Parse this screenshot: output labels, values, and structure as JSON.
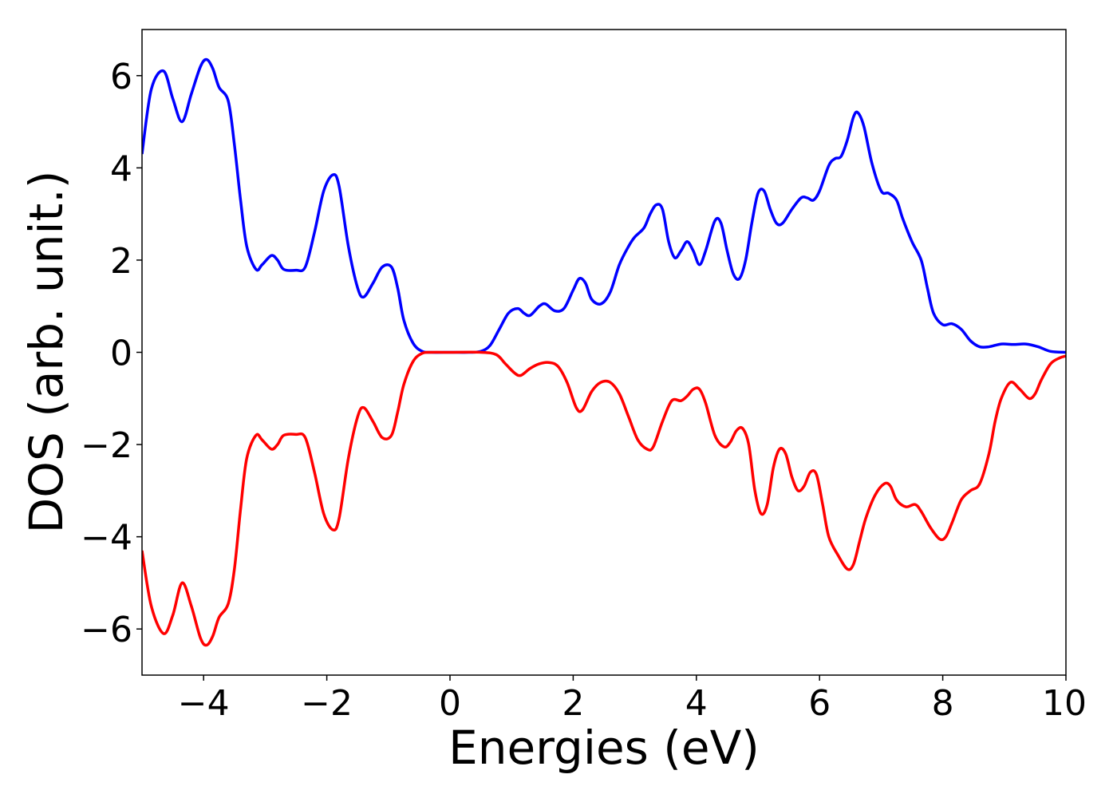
{
  "chart_data": {
    "type": "line",
    "title": "",
    "xlabel": "Energies (eV)",
    "ylabel": "DOS (arb. unit.)",
    "xlim": [
      -5,
      10
    ],
    "ylim": [
      -7,
      7
    ],
    "xticks": [
      -4,
      -2,
      0,
      2,
      4,
      6,
      8,
      10
    ],
    "yticks": [
      -6,
      -4,
      -2,
      0,
      2,
      4,
      6
    ],
    "xtick_labels": [
      "−4",
      "−2",
      "0",
      "2",
      "4",
      "6",
      "8",
      "10"
    ],
    "ytick_labels": [
      "−6",
      "−4",
      "−2",
      "0",
      "2",
      "4",
      "6"
    ],
    "grid": false,
    "legend": "none",
    "series": [
      {
        "color": "#0000ff",
        "points": [
          [
            -5.0,
            4.3
          ],
          [
            -4.85,
            5.7
          ],
          [
            -4.65,
            6.1
          ],
          [
            -4.5,
            5.5
          ],
          [
            -4.35,
            5.0
          ],
          [
            -4.2,
            5.6
          ],
          [
            -4.05,
            6.2
          ],
          [
            -3.95,
            6.35
          ],
          [
            -3.85,
            6.15
          ],
          [
            -3.75,
            5.75
          ],
          [
            -3.6,
            5.45
          ],
          [
            -3.5,
            4.5
          ],
          [
            -3.4,
            3.3
          ],
          [
            -3.3,
            2.3
          ],
          [
            -3.15,
            1.8
          ],
          [
            -3.05,
            1.9
          ],
          [
            -2.9,
            2.1
          ],
          [
            -2.8,
            2.0
          ],
          [
            -2.7,
            1.8
          ],
          [
            -2.5,
            1.78
          ],
          [
            -2.35,
            1.85
          ],
          [
            -2.2,
            2.6
          ],
          [
            -2.05,
            3.5
          ],
          [
            -1.9,
            3.85
          ],
          [
            -1.8,
            3.6
          ],
          [
            -1.65,
            2.3
          ],
          [
            -1.5,
            1.4
          ],
          [
            -1.4,
            1.2
          ],
          [
            -1.25,
            1.5
          ],
          [
            -1.1,
            1.85
          ],
          [
            -0.95,
            1.85
          ],
          [
            -0.85,
            1.4
          ],
          [
            -0.75,
            0.7
          ],
          [
            -0.6,
            0.2
          ],
          [
            -0.45,
            0.02
          ],
          [
            -0.3,
            0.0
          ],
          [
            0.0,
            0.0
          ],
          [
            0.3,
            0.0
          ],
          [
            0.5,
            0.02
          ],
          [
            0.65,
            0.15
          ],
          [
            0.8,
            0.5
          ],
          [
            0.95,
            0.85
          ],
          [
            1.1,
            0.95
          ],
          [
            1.2,
            0.85
          ],
          [
            1.3,
            0.8
          ],
          [
            1.45,
            1.0
          ],
          [
            1.55,
            1.05
          ],
          [
            1.7,
            0.9
          ],
          [
            1.85,
            0.95
          ],
          [
            2.0,
            1.35
          ],
          [
            2.1,
            1.6
          ],
          [
            2.2,
            1.5
          ],
          [
            2.3,
            1.15
          ],
          [
            2.45,
            1.05
          ],
          [
            2.6,
            1.3
          ],
          [
            2.75,
            1.9
          ],
          [
            2.9,
            2.3
          ],
          [
            3.0,
            2.5
          ],
          [
            3.15,
            2.7
          ],
          [
            3.25,
            3.0
          ],
          [
            3.35,
            3.2
          ],
          [
            3.45,
            3.1
          ],
          [
            3.55,
            2.4
          ],
          [
            3.65,
            2.05
          ],
          [
            3.75,
            2.2
          ],
          [
            3.85,
            2.4
          ],
          [
            3.95,
            2.2
          ],
          [
            4.05,
            1.9
          ],
          [
            4.15,
            2.2
          ],
          [
            4.3,
            2.85
          ],
          [
            4.4,
            2.8
          ],
          [
            4.5,
            2.2
          ],
          [
            4.6,
            1.7
          ],
          [
            4.7,
            1.6
          ],
          [
            4.8,
            2.0
          ],
          [
            4.9,
            2.8
          ],
          [
            5.0,
            3.45
          ],
          [
            5.1,
            3.5
          ],
          [
            5.2,
            3.1
          ],
          [
            5.3,
            2.8
          ],
          [
            5.4,
            2.8
          ],
          [
            5.55,
            3.1
          ],
          [
            5.7,
            3.35
          ],
          [
            5.8,
            3.35
          ],
          [
            5.9,
            3.3
          ],
          [
            6.0,
            3.5
          ],
          [
            6.15,
            4.05
          ],
          [
            6.25,
            4.2
          ],
          [
            6.35,
            4.25
          ],
          [
            6.45,
            4.6
          ],
          [
            6.55,
            5.1
          ],
          [
            6.62,
            5.2
          ],
          [
            6.72,
            4.9
          ],
          [
            6.85,
            4.1
          ],
          [
            7.0,
            3.5
          ],
          [
            7.12,
            3.45
          ],
          [
            7.25,
            3.3
          ],
          [
            7.35,
            2.9
          ],
          [
            7.5,
            2.4
          ],
          [
            7.65,
            2.0
          ],
          [
            7.75,
            1.4
          ],
          [
            7.85,
            0.85
          ],
          [
            8.0,
            0.6
          ],
          [
            8.15,
            0.62
          ],
          [
            8.3,
            0.5
          ],
          [
            8.45,
            0.25
          ],
          [
            8.6,
            0.12
          ],
          [
            8.75,
            0.12
          ],
          [
            8.95,
            0.18
          ],
          [
            9.15,
            0.17
          ],
          [
            9.35,
            0.18
          ],
          [
            9.55,
            0.12
          ],
          [
            9.75,
            0.02
          ],
          [
            10.0,
            0.0
          ]
        ]
      },
      {
        "color": "#ff0000",
        "points": [
          [
            -5.0,
            -4.3
          ],
          [
            -4.85,
            -5.5
          ],
          [
            -4.65,
            -6.1
          ],
          [
            -4.5,
            -5.7
          ],
          [
            -4.35,
            -5.0
          ],
          [
            -4.2,
            -5.5
          ],
          [
            -4.05,
            -6.2
          ],
          [
            -3.95,
            -6.35
          ],
          [
            -3.85,
            -6.15
          ],
          [
            -3.75,
            -5.75
          ],
          [
            -3.6,
            -5.45
          ],
          [
            -3.5,
            -4.7
          ],
          [
            -3.4,
            -3.4
          ],
          [
            -3.3,
            -2.3
          ],
          [
            -3.15,
            -1.8
          ],
          [
            -3.05,
            -1.9
          ],
          [
            -2.9,
            -2.1
          ],
          [
            -2.8,
            -2.0
          ],
          [
            -2.7,
            -1.8
          ],
          [
            -2.5,
            -1.78
          ],
          [
            -2.35,
            -1.85
          ],
          [
            -2.2,
            -2.6
          ],
          [
            -2.05,
            -3.5
          ],
          [
            -1.9,
            -3.85
          ],
          [
            -1.8,
            -3.6
          ],
          [
            -1.65,
            -2.3
          ],
          [
            -1.5,
            -1.4
          ],
          [
            -1.4,
            -1.2
          ],
          [
            -1.25,
            -1.5
          ],
          [
            -1.1,
            -1.85
          ],
          [
            -0.95,
            -1.8
          ],
          [
            -0.85,
            -1.3
          ],
          [
            -0.75,
            -0.7
          ],
          [
            -0.6,
            -0.2
          ],
          [
            -0.45,
            -0.02
          ],
          [
            -0.3,
            0.0
          ],
          [
            0.0,
            0.0
          ],
          [
            0.5,
            0.0
          ],
          [
            0.75,
            -0.05
          ],
          [
            0.9,
            -0.25
          ],
          [
            1.05,
            -0.45
          ],
          [
            1.15,
            -0.5
          ],
          [
            1.3,
            -0.35
          ],
          [
            1.45,
            -0.25
          ],
          [
            1.6,
            -0.22
          ],
          [
            1.75,
            -0.3
          ],
          [
            1.9,
            -0.65
          ],
          [
            2.05,
            -1.2
          ],
          [
            2.15,
            -1.25
          ],
          [
            2.3,
            -0.85
          ],
          [
            2.45,
            -0.65
          ],
          [
            2.6,
            -0.65
          ],
          [
            2.75,
            -0.9
          ],
          [
            2.9,
            -1.4
          ],
          [
            3.05,
            -1.9
          ],
          [
            3.2,
            -2.1
          ],
          [
            3.3,
            -2.05
          ],
          [
            3.45,
            -1.5
          ],
          [
            3.6,
            -1.05
          ],
          [
            3.75,
            -1.05
          ],
          [
            3.85,
            -0.95
          ],
          [
            3.95,
            -0.8
          ],
          [
            4.05,
            -0.8
          ],
          [
            4.15,
            -1.1
          ],
          [
            4.3,
            -1.8
          ],
          [
            4.45,
            -2.05
          ],
          [
            4.55,
            -1.95
          ],
          [
            4.65,
            -1.7
          ],
          [
            4.75,
            -1.65
          ],
          [
            4.85,
            -2.0
          ],
          [
            4.95,
            -3.0
          ],
          [
            5.05,
            -3.5
          ],
          [
            5.15,
            -3.3
          ],
          [
            5.25,
            -2.5
          ],
          [
            5.35,
            -2.1
          ],
          [
            5.45,
            -2.2
          ],
          [
            5.55,
            -2.7
          ],
          [
            5.65,
            -3.0
          ],
          [
            5.75,
            -2.9
          ],
          [
            5.85,
            -2.6
          ],
          [
            5.95,
            -2.65
          ],
          [
            6.05,
            -3.3
          ],
          [
            6.15,
            -4.0
          ],
          [
            6.3,
            -4.4
          ],
          [
            6.45,
            -4.7
          ],
          [
            6.55,
            -4.6
          ],
          [
            6.65,
            -4.1
          ],
          [
            6.75,
            -3.6
          ],
          [
            6.9,
            -3.1
          ],
          [
            7.05,
            -2.85
          ],
          [
            7.15,
            -2.9
          ],
          [
            7.25,
            -3.2
          ],
          [
            7.4,
            -3.35
          ],
          [
            7.55,
            -3.3
          ],
          [
            7.65,
            -3.45
          ],
          [
            7.8,
            -3.8
          ],
          [
            7.95,
            -4.05
          ],
          [
            8.05,
            -4.0
          ],
          [
            8.15,
            -3.7
          ],
          [
            8.3,
            -3.2
          ],
          [
            8.45,
            -3.0
          ],
          [
            8.6,
            -2.85
          ],
          [
            8.75,
            -2.2
          ],
          [
            8.85,
            -1.5
          ],
          [
            8.95,
            -1.0
          ],
          [
            9.1,
            -0.65
          ],
          [
            9.25,
            -0.8
          ],
          [
            9.4,
            -1.0
          ],
          [
            9.5,
            -0.9
          ],
          [
            9.6,
            -0.6
          ],
          [
            9.75,
            -0.25
          ],
          [
            9.9,
            -0.12
          ],
          [
            10.0,
            -0.08
          ]
        ]
      }
    ]
  }
}
